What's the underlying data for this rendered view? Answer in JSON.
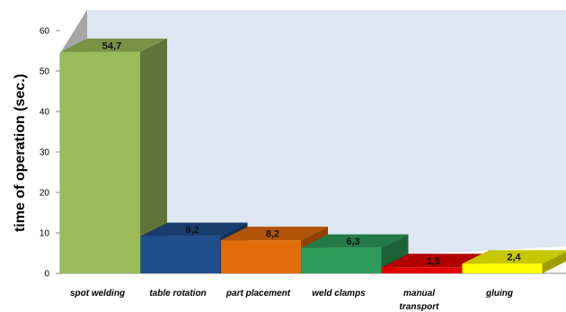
{
  "chart_data": {
    "type": "bar",
    "style": "3d",
    "ylabel": "time of operation (sec.)",
    "xlabel": "",
    "ylim": [
      0,
      60
    ],
    "yticks": [
      0,
      10,
      20,
      30,
      40,
      50,
      60
    ],
    "grid": false,
    "legend": "none",
    "categories": [
      "spot welding",
      "table rotation",
      "part placement",
      "weld clamps",
      "manual transport",
      "gluing"
    ],
    "values": [
      54.7,
      9.2,
      8.2,
      6.3,
      1.5,
      2.4
    ],
    "value_labels": [
      "54,7",
      "9,2",
      "8,2",
      "6,3",
      "1,5",
      "2,4"
    ],
    "colors": [
      "#9bbb59",
      "#1f4e8c",
      "#e36c0a",
      "#2e9c5a",
      "#e30000",
      "#ffff00"
    ]
  }
}
